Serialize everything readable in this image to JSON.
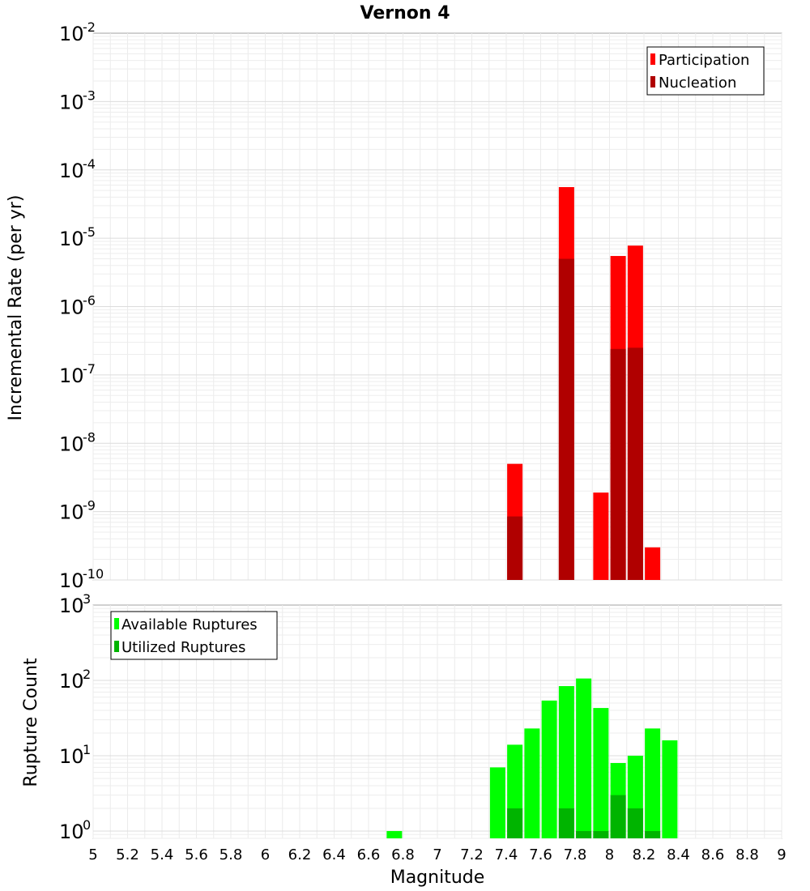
{
  "chart_data": [
    {
      "type": "bar",
      "panel": "top",
      "title": "Vernon 4",
      "ylabel": "Incremental Rate (per yr)",
      "yscale": "log",
      "ylim_exponents": [
        -10,
        -2
      ],
      "yticks": [
        {
          "base": "10",
          "exp": "-2"
        },
        {
          "base": "10",
          "exp": "-3"
        },
        {
          "base": "10",
          "exp": "-4"
        },
        {
          "base": "10",
          "exp": "-5"
        },
        {
          "base": "10",
          "exp": "-6"
        },
        {
          "base": "10",
          "exp": "-7"
        },
        {
          "base": "10",
          "exp": "-8"
        },
        {
          "base": "10",
          "exp": "-9"
        },
        {
          "base": "10",
          "exp": "-10"
        }
      ],
      "legend_position": "top-right",
      "series": [
        {
          "name": "Participation",
          "color": "#ff0000",
          "points": [
            {
              "x": 7.45,
              "y": 5e-09
            },
            {
              "x": 7.75,
              "y": 5.6e-05
            },
            {
              "x": 7.95,
              "y": 1.9e-09
            },
            {
              "x": 8.05,
              "y": 5.5e-06
            },
            {
              "x": 8.15,
              "y": 7.8e-06
            },
            {
              "x": 8.25,
              "y": 3e-10
            }
          ]
        },
        {
          "name": "Nucleation",
          "color": "#b00000",
          "points": [
            {
              "x": 7.45,
              "y": 8.5e-10
            },
            {
              "x": 7.75,
              "y": 5e-06
            },
            {
              "x": 8.05,
              "y": 2.4e-07
            },
            {
              "x": 8.15,
              "y": 2.5e-07
            }
          ]
        }
      ]
    },
    {
      "type": "bar",
      "panel": "bottom",
      "ylabel": "Rupture Count",
      "xlabel": "Magnitude",
      "yscale": "log",
      "ylim": [
        0.8,
        1000
      ],
      "yticks": [
        {
          "base": "10",
          "exp": "3"
        },
        {
          "base": "10",
          "exp": "2"
        },
        {
          "base": "10",
          "exp": "1"
        },
        {
          "base": "10",
          "exp": "0"
        }
      ],
      "xlim": [
        5,
        9
      ],
      "xticks": [
        "5",
        "5.2",
        "5.4",
        "5.6",
        "5.8",
        "6",
        "6.2",
        "6.4",
        "6.6",
        "6.8",
        "7",
        "7.2",
        "7.4",
        "7.6",
        "7.8",
        "8",
        "8.2",
        "8.4",
        "8.6",
        "8.8",
        "9"
      ],
      "legend_position": "top-left",
      "series": [
        {
          "name": "Available Ruptures",
          "color": "#00ff00",
          "points": [
            {
              "x": 6.75,
              "y": 1
            },
            {
              "x": 7.35,
              "y": 7
            },
            {
              "x": 7.45,
              "y": 14
            },
            {
              "x": 7.55,
              "y": 23
            },
            {
              "x": 7.65,
              "y": 54
            },
            {
              "x": 7.75,
              "y": 84
            },
            {
              "x": 7.85,
              "y": 106
            },
            {
              "x": 7.95,
              "y": 43
            },
            {
              "x": 8.05,
              "y": 8
            },
            {
              "x": 8.15,
              "y": 10
            },
            {
              "x": 8.25,
              "y": 23
            },
            {
              "x": 8.35,
              "y": 16
            }
          ]
        },
        {
          "name": "Utilized Ruptures",
          "color": "#00b400",
          "points": [
            {
              "x": 7.45,
              "y": 2
            },
            {
              "x": 7.75,
              "y": 2
            },
            {
              "x": 7.85,
              "y": 1
            },
            {
              "x": 7.95,
              "y": 1
            },
            {
              "x": 8.05,
              "y": 3
            },
            {
              "x": 8.15,
              "y": 2
            },
            {
              "x": 8.25,
              "y": 1
            }
          ]
        }
      ]
    }
  ]
}
